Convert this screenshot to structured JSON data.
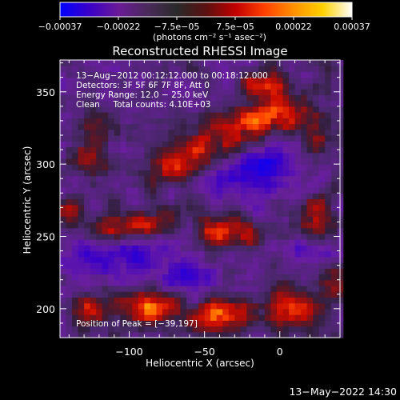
{
  "chart_data": {
    "type": "heatmap",
    "title": "Reconstructed RHESSI Image",
    "xlabel": "Heliocentric X (arcsec)",
    "ylabel": "Heliocentric Y (arcsec)",
    "xlim": [
      -146,
      40
    ],
    "ylim": [
      180,
      372
    ],
    "x_ticks": [
      {
        "value": -100,
        "label": "−100"
      },
      {
        "value": -50,
        "label": "−50"
      },
      {
        "value": 0,
        "label": "0"
      }
    ],
    "y_ticks": [
      {
        "value": 200,
        "label": "200"
      },
      {
        "value": 250,
        "label": "250"
      },
      {
        "value": 300,
        "label": "300"
      },
      {
        "value": 350,
        "label": "350"
      }
    ],
    "colorbar": {
      "range": [
        -0.00037,
        0.00037
      ],
      "tick_labels": [
        "−0.00037",
        "−0.00022",
        "−7.5e−05",
        "7.5e−05",
        "0.00022",
        "0.00037"
      ],
      "unit_label": "(photons cm⁻² s⁻¹ asec⁻²)",
      "colors": [
        "#0000ff",
        "#3a00c8",
        "#6a1a98",
        "#4a2a5a",
        "#2a2a2a",
        "#5a1010",
        "#c00000",
        "#ff4000",
        "#ff9000",
        "#ffd000",
        "#ffffff"
      ]
    },
    "annotations": [
      "13−Aug−2012 00:12:12.000 to 00:18:12.000",
      "Detectors: 3F 5F 6F 7F 8F, Att 0",
      "Energy Range: 12.0 − 25.0 keV",
      "Clean     Total counts: 4.10E+03"
    ],
    "peak": {
      "label": "Position of Peak = [−39,197]",
      "x": -39,
      "y": 197
    },
    "sources": [
      {
        "x": -44,
        "y": 312,
        "sx": 18,
        "sy": 10,
        "a": 0.8
      },
      {
        "x": -20,
        "y": 330,
        "sx": 14,
        "sy": 8,
        "a": 0.85
      },
      {
        "x": -70,
        "y": 298,
        "sx": 12,
        "sy": 8,
        "a": 0.65
      },
      {
        "x": -10,
        "y": 355,
        "sx": 10,
        "sy": 8,
        "a": 0.7
      },
      {
        "x": 5,
        "y": 338,
        "sx": 10,
        "sy": 8,
        "a": 0.55
      },
      {
        "x": -90,
        "y": 258,
        "sx": 14,
        "sy": 8,
        "a": 0.75
      },
      {
        "x": -110,
        "y": 252,
        "sx": 10,
        "sy": 8,
        "a": 0.65
      },
      {
        "x": -35,
        "y": 252,
        "sx": 14,
        "sy": 8,
        "a": 0.8
      },
      {
        "x": -130,
        "y": 305,
        "sx": 8,
        "sy": 8,
        "a": 0.55
      },
      {
        "x": 25,
        "y": 262,
        "sx": 10,
        "sy": 12,
        "a": 0.6
      },
      {
        "x": 25,
        "y": 320,
        "sx": 10,
        "sy": 10,
        "a": 0.5
      },
      {
        "x": -39,
        "y": 197,
        "sx": 12,
        "sy": 9,
        "a": 1.0
      },
      {
        "x": -85,
        "y": 200,
        "sx": 14,
        "sy": 10,
        "a": 0.85
      },
      {
        "x": 10,
        "y": 200,
        "sx": 12,
        "sy": 10,
        "a": 0.75
      },
      {
        "x": -125,
        "y": 200,
        "sx": 10,
        "sy": 8,
        "a": 0.55
      },
      {
        "x": -140,
        "y": 265,
        "sx": 8,
        "sy": 10,
        "a": 0.45
      },
      {
        "x": -120,
        "y": 330,
        "sx": 10,
        "sy": 8,
        "a": 0.4
      },
      {
        "x": 35,
        "y": 220,
        "sx": 8,
        "sy": 10,
        "a": 0.55
      }
    ],
    "negative_regions": [
      {
        "x": -20,
        "y": 298,
        "sx": 22,
        "sy": 12,
        "a": 0.6
      },
      {
        "x": -100,
        "y": 240,
        "sx": 18,
        "sy": 12,
        "a": 0.5
      },
      {
        "x": -60,
        "y": 225,
        "sx": 14,
        "sy": 10,
        "a": 0.45
      },
      {
        "x": 20,
        "y": 240,
        "sx": 10,
        "sy": 10,
        "a": 0.4
      },
      {
        "x": -130,
        "y": 235,
        "sx": 10,
        "sy": 12,
        "a": 0.35
      }
    ]
  },
  "footer": {
    "timestamp": "13−May−2022 14:30"
  }
}
